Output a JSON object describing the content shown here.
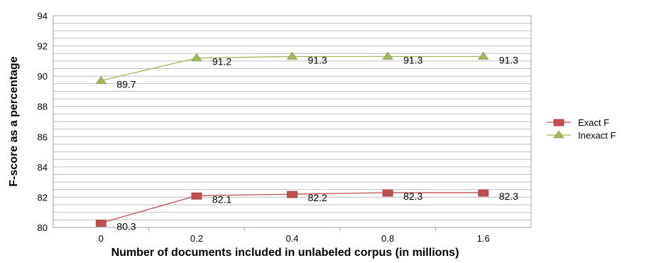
{
  "chart_data": {
    "type": "line",
    "categories": [
      "0",
      "0.2",
      "0.4",
      "0.8",
      "1.6"
    ],
    "series": [
      {
        "name": "Exact F",
        "values": [
          80.3,
          82.1,
          82.2,
          82.3,
          82.3
        ],
        "color": "#c0504d",
        "marker": "square",
        "labels": [
          "80.3",
          "82.1",
          "82.2",
          "82.3",
          "82.3"
        ]
      },
      {
        "name": "Inexact F",
        "values": [
          89.7,
          91.2,
          91.3,
          91.3,
          91.3
        ],
        "color": "#9bbb59",
        "marker": "triangle",
        "labels": [
          "89.7",
          "91.2",
          "91.3",
          "91.3",
          "91.3"
        ]
      }
    ],
    "xlabel": "Number of documents included in unlabeled corpus (in millions)",
    "ylabel": "F-score as a percentage",
    "ylim": [
      80,
      94
    ],
    "yticks": [
      "80",
      "82",
      "84",
      "86",
      "88",
      "90",
      "92",
      "94"
    ],
    "grid": true,
    "legend": "right"
  }
}
